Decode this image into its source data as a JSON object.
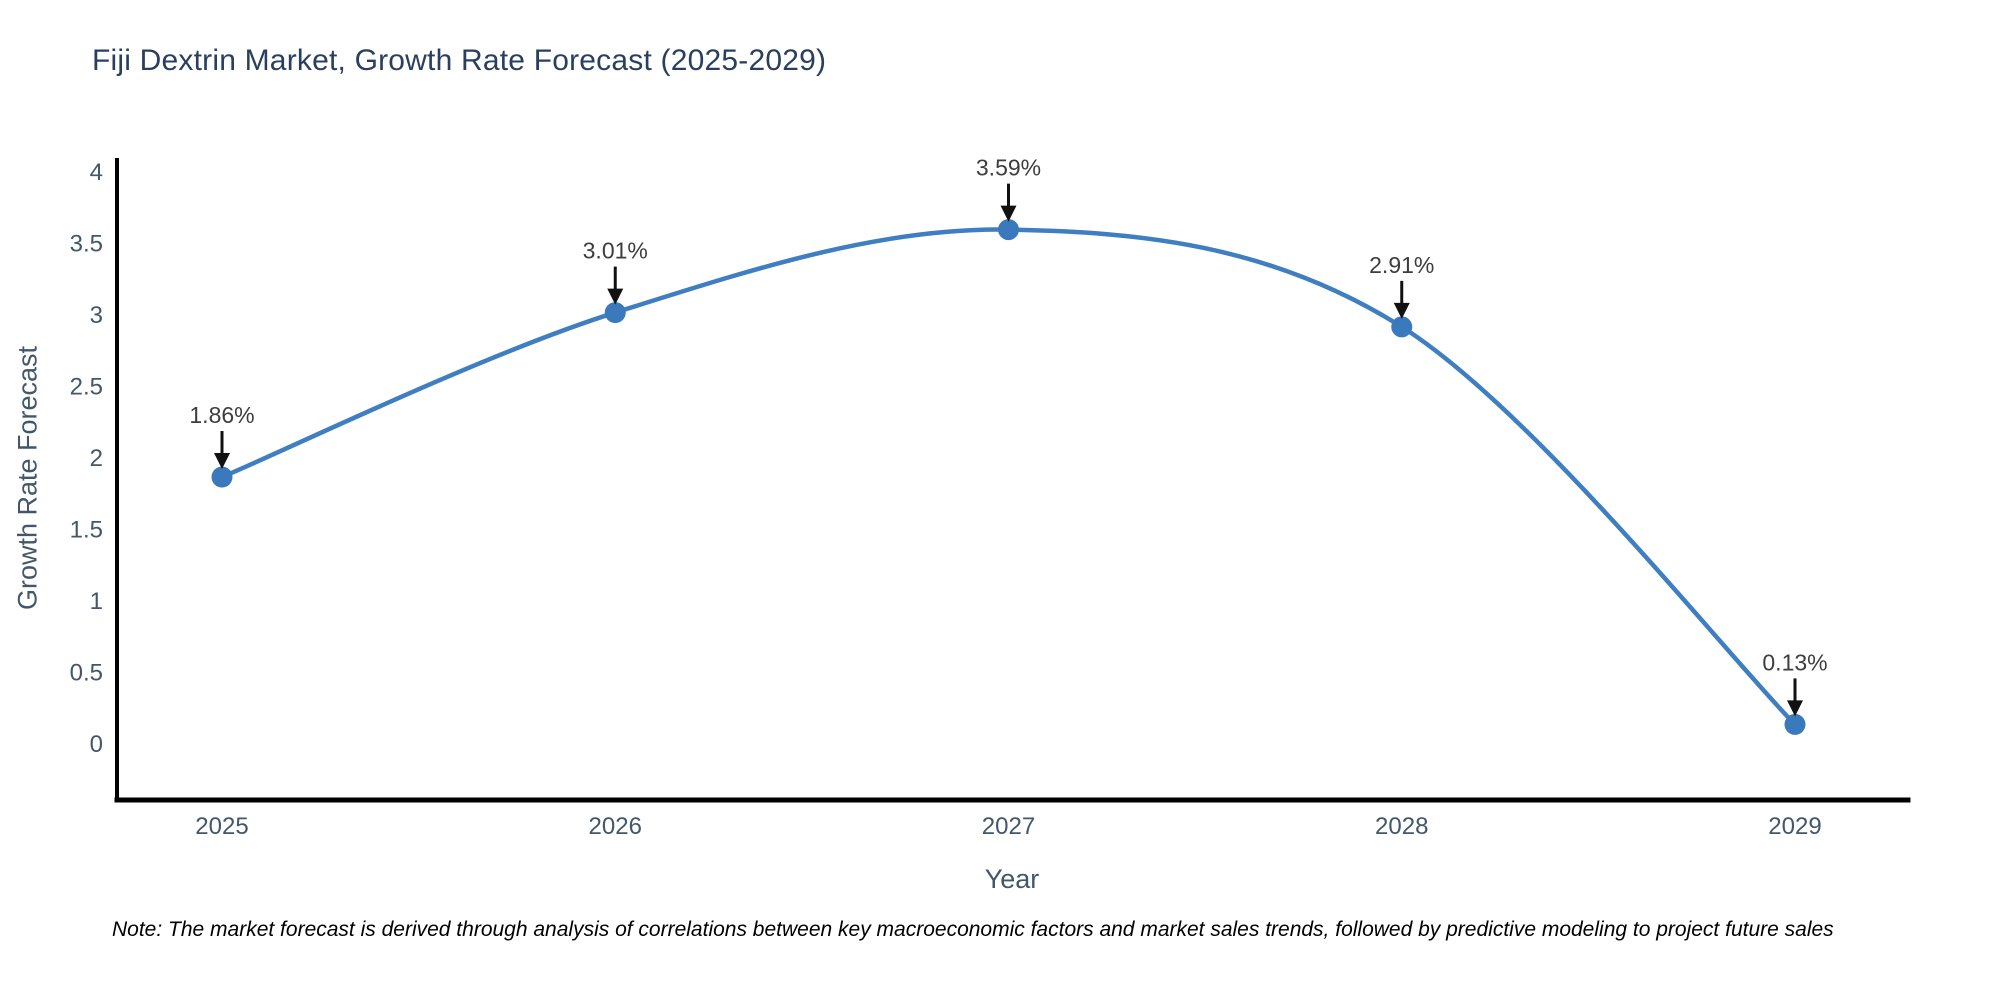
{
  "chart_data": {
    "type": "line",
    "title": "Fiji Dextrin Market, Growth Rate Forecast (2025-2029)",
    "xlabel": "Year",
    "ylabel": "Growth Rate Forecast",
    "x": [
      2025,
      2026,
      2027,
      2028,
      2029
    ],
    "values": [
      1.86,
      3.01,
      3.59,
      2.91,
      0.13
    ],
    "point_labels": [
      "1.86%",
      "3.01%",
      "3.59%",
      "2.91%",
      "0.13%"
    ],
    "series_name": "Growth Rate Forecast",
    "line_shape": "spline",
    "grid": false,
    "legend_position": "none",
    "ylim": [
      -0.4,
      4.08
    ],
    "yticks": [
      0,
      0.5,
      1,
      1.5,
      2,
      2.5,
      3,
      3.5,
      4
    ],
    "ytick_labels": [
      "0",
      "0.5",
      "1",
      "1.5",
      "2",
      "2.5",
      "3",
      "3.5",
      "4"
    ],
    "xtick_labels": [
      "2025",
      "2026",
      "2027",
      "2028",
      "2029"
    ],
    "colors": {
      "line": "#3f7fc1",
      "marker": "#3a79bb",
      "axis_line": "#000000",
      "title_text": "#2a3f5f",
      "tick_text": "#42576b",
      "annotation_text": "#3d3d3d",
      "annotation_arrow": "#111111"
    }
  },
  "note": {
    "text": "Note: The market forecast is derived through analysis of correlations between key macroeconomic factors and market sales trends, followed by predictive modeling to project future sales"
  }
}
